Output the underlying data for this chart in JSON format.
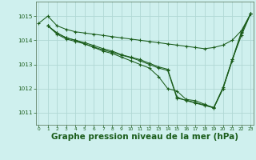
{
  "background_color": "#cff0ee",
  "grid_color": "#b0d8d4",
  "line_color": "#1a5c1a",
  "marker": "+",
  "xlabel": "Graphe pression niveau de la mer (hPa)",
  "xlabel_fontsize": 7.5,
  "ylabel_ticks": [
    1011,
    1012,
    1013,
    1014,
    1015
  ],
  "xticks": [
    0,
    1,
    2,
    3,
    4,
    5,
    6,
    7,
    8,
    9,
    10,
    11,
    12,
    13,
    14,
    15,
    16,
    17,
    18,
    19,
    20,
    21,
    22,
    23
  ],
  "xlim": [
    -0.3,
    23.3
  ],
  "ylim": [
    1010.5,
    1015.6
  ],
  "lines": [
    {
      "x": [
        0,
        1,
        2,
        3,
        4,
        5,
        6,
        7,
        8,
        9,
        10,
        11,
        12,
        13,
        14,
        15,
        16,
        17,
        18,
        19,
        20,
        21,
        22,
        23
      ],
      "y": [
        1014.7,
        1015.0,
        1014.6,
        1014.45,
        1014.35,
        1014.3,
        1014.25,
        1014.2,
        1014.15,
        1014.1,
        1014.05,
        1014.0,
        1013.95,
        1013.9,
        1013.85,
        1013.8,
        1013.75,
        1013.7,
        1013.65,
        1013.7,
        1013.8,
        1014.0,
        1014.4,
        1015.1
      ]
    },
    {
      "x": [
        1,
        2,
        3,
        4,
        5,
        6,
        7,
        8,
        9,
        10,
        11,
        12,
        13,
        14,
        15,
        16,
        17,
        18,
        19,
        20,
        21,
        22,
        23
      ],
      "y": [
        1014.6,
        1014.3,
        1014.1,
        1014.0,
        1013.85,
        1013.7,
        1013.55,
        1013.45,
        1013.3,
        1013.15,
        1013.0,
        1012.85,
        1012.5,
        1012.0,
        1011.9,
        1011.55,
        1011.5,
        1011.35,
        1011.2,
        1012.0,
        1013.2,
        1014.2,
        1015.1
      ]
    },
    {
      "x": [
        1,
        2,
        3,
        4,
        5,
        6,
        7,
        8,
        9,
        10,
        11,
        12,
        13,
        14,
        15,
        16,
        17,
        18,
        19,
        20,
        21,
        22,
        23
      ],
      "y": [
        1014.6,
        1014.3,
        1014.1,
        1014.0,
        1013.9,
        1013.78,
        1013.65,
        1013.55,
        1013.4,
        1013.3,
        1013.2,
        1013.05,
        1012.9,
        1012.8,
        1011.65,
        1011.5,
        1011.4,
        1011.3,
        1011.2,
        1012.0,
        1013.15,
        1014.3,
        1015.1
      ]
    },
    {
      "x": [
        1,
        2,
        3,
        4,
        5,
        6,
        7,
        8,
        9,
        10,
        11,
        12,
        13,
        14,
        15,
        16,
        17,
        18,
        19,
        20,
        21,
        22,
        23
      ],
      "y": [
        1014.6,
        1014.25,
        1014.05,
        1013.95,
        1013.85,
        1013.72,
        1013.6,
        1013.5,
        1013.38,
        1013.28,
        1013.15,
        1013.0,
        1012.85,
        1012.75,
        1011.6,
        1011.52,
        1011.42,
        1011.32,
        1011.22,
        1012.05,
        1013.2,
        1014.35,
        1015.1
      ]
    }
  ]
}
